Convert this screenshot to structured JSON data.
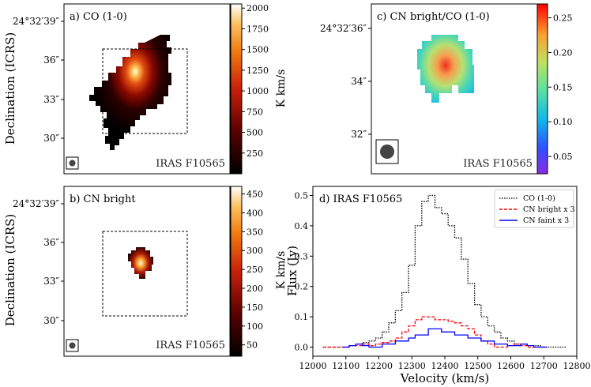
{
  "chart_data": [
    {
      "type": "heatmap",
      "panel_label": "a) CO (1-0)",
      "source": "IRAS F10565",
      "ylabel": "Declination (ICRS)",
      "yticks": [
        "24°32′39″",
        "36″",
        "33″",
        "30″"
      ],
      "colorbar": {
        "label": "K km/s",
        "min": 0,
        "max": 2050,
        "ticks": [
          "2000",
          "1750",
          "1500",
          "1250",
          "1000",
          "750",
          "500",
          "250"
        ]
      },
      "peak_value": 2000
    },
    {
      "type": "heatmap",
      "panel_label": "b) CN bright",
      "source": "IRAS F10565",
      "ylabel": "Declination (ICRS)",
      "yticks": [
        "24°32′39″",
        "36″",
        "33″",
        "30″"
      ],
      "colorbar": {
        "label": "K km/s",
        "min": 20,
        "max": 470,
        "ticks": [
          "450",
          "400",
          "350",
          "300",
          "250",
          "200",
          "150",
          "100",
          "50"
        ]
      },
      "peak_value": 450
    },
    {
      "type": "heatmap",
      "panel_label": "c) CN bright/CO (1-0)",
      "source": "IRAS F10565",
      "ylabel": "",
      "yticks": [
        "24°32′36″",
        "34″",
        "32″"
      ],
      "colorbar": {
        "label": "",
        "min": 0.025,
        "max": 0.27,
        "ticks": [
          "0.25",
          "0.20",
          "0.15",
          "0.10",
          "0.05"
        ]
      },
      "peak_value": 0.26
    },
    {
      "type": "line",
      "panel_label": "d) IRAS F10565",
      "xlabel": "Velocity (km/s)",
      "ylabel": "Flux (Jy)",
      "xlim": [
        12000,
        12800
      ],
      "ylim": [
        -0.03,
        0.53
      ],
      "xticks": [
        "12000",
        "12100",
        "12200",
        "12300",
        "12400",
        "12500",
        "12600",
        "12700",
        "12800"
      ],
      "yticks": [
        "0.0",
        "0.1",
        "0.2",
        "0.3",
        "0.4",
        "0.5"
      ],
      "series": [
        {
          "name": "CO (1-0)",
          "color": "#000000",
          "style": "dotted",
          "x": [
            12040,
            12060,
            12080,
            12100,
            12120,
            12140,
            12160,
            12180,
            12200,
            12220,
            12240,
            12260,
            12280,
            12300,
            12320,
            12340,
            12360,
            12380,
            12400,
            12420,
            12440,
            12460,
            12480,
            12500,
            12520,
            12540,
            12560,
            12580,
            12600,
            12620,
            12640,
            12660,
            12680,
            12700,
            12720,
            12740,
            12760
          ],
          "y": [
            0.0,
            0.0,
            0.0,
            0.0,
            0.005,
            0.01,
            0.015,
            0.02,
            0.03,
            0.05,
            0.08,
            0.12,
            0.18,
            0.27,
            0.4,
            0.48,
            0.5,
            0.46,
            0.44,
            0.4,
            0.36,
            0.29,
            0.21,
            0.14,
            0.1,
            0.07,
            0.05,
            0.03,
            0.02,
            0.01,
            0.01,
            0.005,
            0.005,
            0.0,
            0.0,
            0.0,
            0.0
          ]
        },
        {
          "name": "CN bright x 3",
          "color": "#ff0000",
          "style": "dashed",
          "x": [
            12040,
            12060,
            12080,
            12100,
            12120,
            12140,
            12160,
            12180,
            12200,
            12220,
            12240,
            12260,
            12280,
            12300,
            12320,
            12340,
            12360,
            12380,
            12400,
            12420,
            12440,
            12460,
            12480,
            12500,
            12520,
            12540,
            12560,
            12580,
            12600,
            12620,
            12640,
            12660,
            12680,
            12700
          ],
          "y": [
            0.0,
            0.0,
            0.0,
            0.0,
            0.005,
            0.005,
            0.01,
            0.005,
            0.01,
            0.015,
            0.02,
            0.03,
            0.05,
            0.07,
            0.09,
            0.1,
            0.1,
            0.09,
            0.09,
            0.085,
            0.08,
            0.07,
            0.06,
            0.04,
            0.02,
            0.01,
            0.0,
            0.0,
            0.005,
            0.01,
            0.005,
            0.0,
            0.0,
            0.0
          ]
        },
        {
          "name": "CN faint x 3",
          "color": "#0000ff",
          "style": "solid",
          "x": [
            12100,
            12120,
            12140,
            12160,
            12180,
            12200,
            12220,
            12240,
            12260,
            12280,
            12300,
            12320,
            12340,
            12360,
            12380,
            12400,
            12420,
            12440,
            12460,
            12480,
            12500,
            12520,
            12540,
            12560,
            12580,
            12600,
            12620,
            12640,
            12660,
            12680,
            12700
          ],
          "y": [
            0.0,
            0.005,
            0.01,
            0.005,
            0.0,
            0.0,
            0.01,
            0.01,
            0.02,
            0.02,
            0.03,
            0.04,
            0.04,
            0.06,
            0.06,
            0.05,
            0.05,
            0.04,
            0.04,
            0.03,
            0.03,
            0.02,
            0.02,
            0.01,
            0.01,
            0.005,
            0.005,
            0.01,
            0.005,
            0.0,
            0.0
          ]
        }
      ]
    }
  ]
}
